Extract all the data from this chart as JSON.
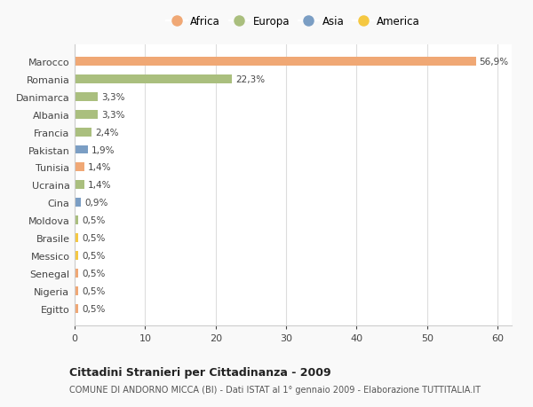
{
  "countries": [
    "Marocco",
    "Romania",
    "Danimarca",
    "Albania",
    "Francia",
    "Pakistan",
    "Tunisia",
    "Ucraina",
    "Cina",
    "Moldova",
    "Brasile",
    "Messico",
    "Senegal",
    "Nigeria",
    "Egitto"
  ],
  "values": [
    56.9,
    22.3,
    3.3,
    3.3,
    2.4,
    1.9,
    1.4,
    1.4,
    0.9,
    0.5,
    0.5,
    0.5,
    0.5,
    0.5,
    0.5
  ],
  "labels": [
    "56,9%",
    "22,3%",
    "3,3%",
    "3,3%",
    "2,4%",
    "1,9%",
    "1,4%",
    "1,4%",
    "0,9%",
    "0,5%",
    "0,5%",
    "0,5%",
    "0,5%",
    "0,5%",
    "0,5%"
  ],
  "colors": [
    "#F0A875",
    "#AABF7E",
    "#AABF7E",
    "#AABF7E",
    "#AABF7E",
    "#7B9EC4",
    "#F0A875",
    "#AABF7E",
    "#7B9EC4",
    "#AABF7E",
    "#F5C842",
    "#F5C842",
    "#F0A875",
    "#F0A875",
    "#F0A875"
  ],
  "legend": {
    "Africa": "#F0A875",
    "Europa": "#AABF7E",
    "Asia": "#7B9EC4",
    "America": "#F5C842"
  },
  "title": "Cittadini Stranieri per Cittadinanza - 2009",
  "subtitle": "COMUNE DI ANDORNO MICCA (BI) - Dati ISTAT al 1° gennaio 2009 - Elaborazione TUTTITALIA.IT",
  "xlim": [
    0,
    62
  ],
  "xticks": [
    0,
    10,
    20,
    30,
    40,
    50,
    60
  ],
  "bg_color": "#f9f9f9",
  "plot_bg_color": "#ffffff",
  "grid_color": "#dddddd"
}
